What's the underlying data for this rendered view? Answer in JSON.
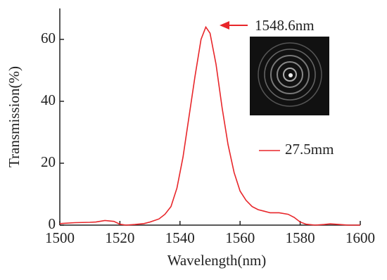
{
  "chart_data": {
    "type": "line",
    "x_label": "Wavelength(nm)",
    "y_label": "Transmission(%)",
    "x": [
      1500,
      1505,
      1510,
      1512,
      1515,
      1518,
      1520,
      1522,
      1525,
      1528,
      1530,
      1533,
      1535,
      1537,
      1539,
      1541,
      1543,
      1545,
      1547,
      1548.6,
      1550,
      1552,
      1554,
      1556,
      1558,
      1560,
      1562,
      1564,
      1566,
      1568,
      1570,
      1573,
      1576,
      1578,
      1580,
      1582,
      1585,
      1588,
      1590,
      1593,
      1596,
      1600
    ],
    "series": [
      {
        "name": "27.5mm",
        "color": "#e8262a",
        "values": [
          0.5,
          0.8,
          0.9,
          1.0,
          1.5,
          1.2,
          0.3,
          0,
          0.2,
          0.5,
          1,
          2,
          3.5,
          6,
          12,
          22,
          35,
          48,
          60,
          64,
          62,
          52,
          38,
          26,
          17,
          11,
          8,
          6,
          5,
          4.5,
          4,
          4,
          3.5,
          2.5,
          1,
          0.3,
          0,
          0.2,
          0.4,
          0.2,
          0,
          0
        ]
      }
    ],
    "annotation": "1548.6nm",
    "xlim": [
      1500,
      1600
    ],
    "xticks": [
      1500,
      1520,
      1540,
      1560,
      1580,
      1600
    ],
    "ylim": [
      0,
      70
    ],
    "yticks": [
      0,
      20,
      40,
      60
    ]
  }
}
